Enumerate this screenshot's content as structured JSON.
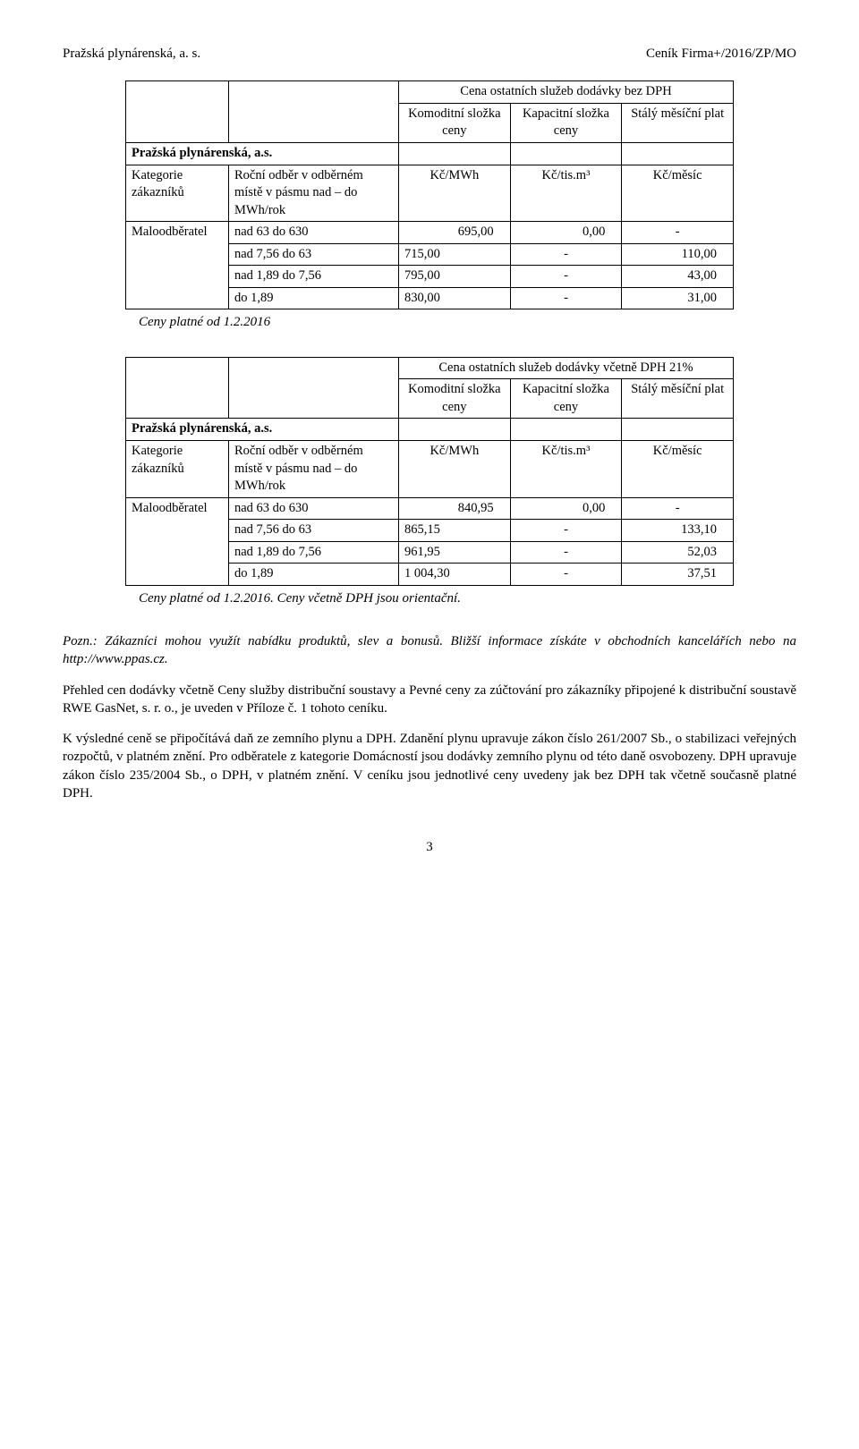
{
  "header": {
    "left": "Pražská plynárenská, a. s.",
    "right": "Ceník Firma+/2016/ZP/MO"
  },
  "company_label": "Pražská plynárenská, a.s.",
  "category_heading": "Kategorie zákazníků",
  "range_heading": "Roční odběr v odběrném místě v pásmu nad – do MWh/rok",
  "col_komoditni": "Komoditní složka ceny",
  "col_kapacitni": "Kapacitní složka ceny",
  "col_staly": "Stálý měsíční plat",
  "unit_kcmwh": "Kč/MWh",
  "unit_kctism3": "Kč/tis.m³",
  "unit_kcmesic": "Kč/měsíc",
  "row_cat": "Maloodběratel",
  "table1": {
    "title": "Cena ostatních služeb dodávky bez DPH",
    "rows": [
      {
        "range": "nad 63 do 630",
        "komod": "695,00",
        "kapac": "0,00",
        "staly": "-"
      },
      {
        "range": "nad 7,56 do 63",
        "komod": "715,00",
        "kapac": "-",
        "staly": "110,00"
      },
      {
        "range": "nad 1,89 do 7,56",
        "komod": "795,00",
        "kapac": "-",
        "staly": "43,00"
      },
      {
        "range": "do 1,89",
        "komod": "830,00",
        "kapac": "-",
        "staly": "31,00"
      }
    ],
    "note": "Ceny platné od 1.2.2016"
  },
  "table2": {
    "title": "Cena ostatních služeb dodávky včetně DPH 21%",
    "rows": [
      {
        "range": "nad 63 do 630",
        "komod": "840,95",
        "kapac": "0,00",
        "staly": "-"
      },
      {
        "range": "nad 7,56 do 63",
        "komod": "865,15",
        "kapac": "-",
        "staly": "133,10"
      },
      {
        "range": "nad 1,89 do 7,56",
        "komod": "961,95",
        "kapac": "-",
        "staly": "52,03"
      },
      {
        "range": "do 1,89",
        "komod": "1 004,30",
        "kapac": "-",
        "staly": "37,51"
      }
    ],
    "note": "Ceny platné od 1.2.2016. Ceny včetně DPH jsou orientační."
  },
  "para1": "Pozn.: Zákazníci mohou využít nabídku produktů, slev a bonusů. Bližší informace získáte v obchodních kancelářích nebo na http://www.ppas.cz.",
  "para2": "Přehled cen dodávky včetně Ceny služby distribuční soustavy a Pevné ceny za zúčtování pro zákazníky připojené k distribuční soustavě RWE GasNet, s. r. o., je uveden v Příloze č. 1 tohoto ceníku.",
  "para3": "K výsledné ceně se připočítává daň ze zemního plynu a DPH. Zdanění plynu upravuje zákon číslo 261/2007 Sb., o stabilizaci veřejných rozpočtů, v platném znění. Pro odběratele z kategorie Domácností jsou dodávky zemního plynu od této daně osvobozeny. DPH upravuje zákon číslo 235/2004 Sb., o DPH, v platném znění. V ceníku jsou jednotlivé ceny uvedeny jak bez DPH tak včetně současně platné DPH.",
  "page_number": "3"
}
